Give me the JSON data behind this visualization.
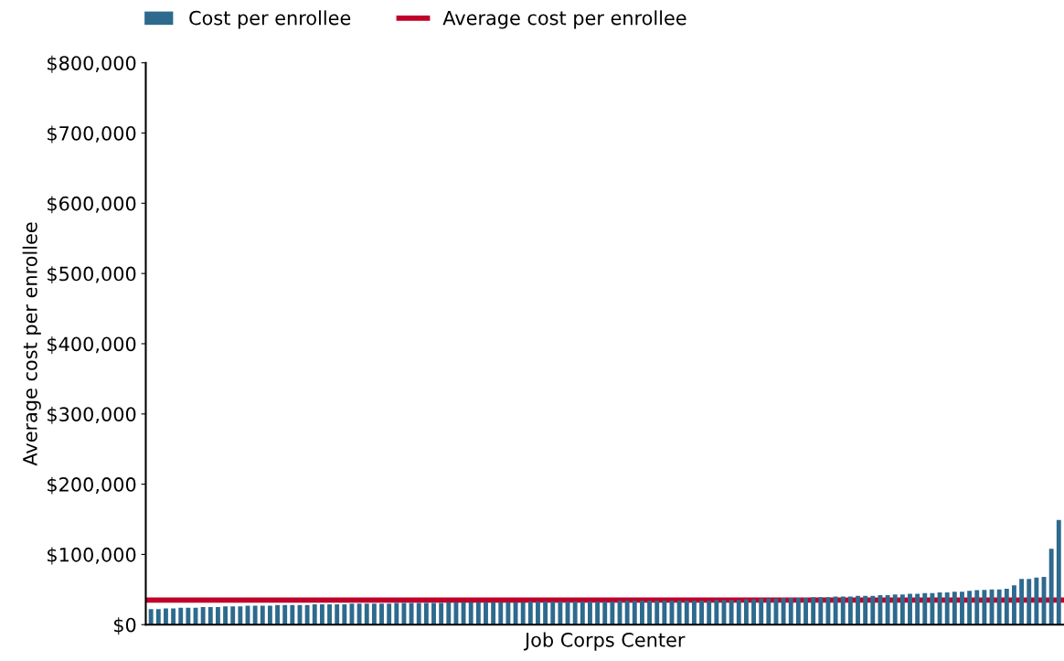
{
  "chart_data": {
    "type": "bar",
    "xlabel": "Job Corps Center",
    "ylabel": "Average cost per enrollee",
    "categories": [
      null,
      null,
      null,
      null,
      null,
      null,
      null,
      null,
      null,
      null,
      null,
      null,
      null,
      null,
      null,
      null,
      null,
      null,
      null,
      null,
      null,
      null,
      null,
      null,
      null,
      null,
      null,
      null,
      null,
      null,
      null,
      null,
      null,
      null,
      null,
      null,
      null,
      null,
      null,
      null,
      null,
      null,
      null,
      null,
      null,
      null,
      null,
      null,
      null,
      null,
      null,
      null,
      null,
      null,
      null,
      null,
      null,
      null,
      null,
      null,
      null,
      null,
      null,
      null,
      null,
      null,
      null,
      null,
      null,
      null,
      null,
      null,
      null,
      null,
      null,
      null,
      null,
      null,
      null,
      null,
      null,
      null,
      null,
      null,
      null,
      null,
      null,
      null,
      null,
      null,
      null,
      null,
      null,
      null,
      null,
      null,
      null,
      null,
      null,
      null,
      null,
      null,
      null,
      null,
      null,
      null,
      null,
      null,
      null,
      null,
      null,
      null,
      null,
      null,
      null,
      null,
      null,
      null,
      null,
      null,
      null,
      null,
      null
    ],
    "series": [
      {
        "name": "Cost per enrollee",
        "color": "#2e6a8e",
        "values": [
          22000,
          22000,
          23000,
          23000,
          24000,
          24000,
          24000,
          25000,
          25000,
          25000,
          26000,
          26000,
          26000,
          27000,
          27000,
          27000,
          27000,
          28000,
          28000,
          28000,
          28000,
          28000,
          29000,
          29000,
          29000,
          29000,
          29000,
          30000,
          30000,
          30000,
          30000,
          30000,
          30000,
          31000,
          31000,
          31000,
          31000,
          31000,
          31000,
          31000,
          32000,
          32000,
          32000,
          32000,
          32000,
          32000,
          32000,
          32000,
          32000,
          32000,
          32000,
          33000,
          33000,
          33000,
          33000,
          33000,
          33000,
          33000,
          33000,
          33000,
          33000,
          33000,
          33000,
          34000,
          34000,
          34000,
          34000,
          34000,
          34000,
          34000,
          34000,
          34000,
          34000,
          34000,
          34000,
          34000,
          35000,
          35000,
          35000,
          35000,
          36000,
          36000,
          37000,
          37000,
          37000,
          38000,
          38000,
          38000,
          38000,
          39000,
          39000,
          39000,
          40000,
          40000,
          40000,
          41000,
          41000,
          41000,
          42000,
          42000,
          43000,
          43000,
          44000,
          44000,
          45000,
          45000,
          46000,
          46000,
          47000,
          47000,
          48000,
          49000,
          49500,
          50000,
          50000,
          51000,
          56000,
          65000,
          65000,
          67000,
          68000,
          108000,
          149000
        ]
      }
    ],
    "ref_lines": [
      {
        "axis": "y",
        "value": 35000,
        "label": "Average cost per enrollee",
        "color": "#c0002a",
        "line_style": "solid"
      }
    ],
    "ylim": [
      0,
      800000
    ],
    "yticks": [
      {
        "value": 0,
        "label": "$0"
      },
      {
        "value": 100000,
        "label": "$100,000"
      },
      {
        "value": 200000,
        "label": "$200,000"
      },
      {
        "value": 300000,
        "label": "$300,000"
      },
      {
        "value": 400000,
        "label": "$400,000"
      },
      {
        "value": 500000,
        "label": "$500,000"
      },
      {
        "value": 600000,
        "label": "$600,000"
      },
      {
        "value": 700000,
        "label": "$700,000"
      },
      {
        "value": 800000,
        "label": "$800,000"
      }
    ],
    "tick_labels": "y",
    "legend": "top left",
    "grid": false
  }
}
